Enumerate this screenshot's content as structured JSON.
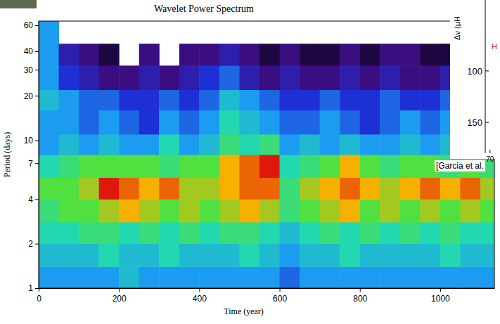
{
  "chart_data": {
    "type": "heatmap",
    "title": "Wavelet Power Spectrum",
    "x_label": "Time (year)",
    "y_label": "Period (days)",
    "log": "y",
    "xlim": [
      0,
      1135
    ],
    "ylim": [
      1,
      64
    ],
    "xticks": [
      0,
      200,
      400,
      600,
      800,
      1000
    ],
    "yticks": [
      1,
      2,
      4,
      7,
      10,
      20,
      30,
      40,
      60
    ],
    "x_bins": [
      0,
      50,
      100,
      150,
      200,
      250,
      300,
      350,
      400,
      450,
      500,
      550,
      600,
      650,
      700,
      750,
      800,
      850,
      900,
      950,
      1000,
      1050,
      1100,
      1150
    ],
    "y_bins": [
      1,
      1.4,
      2,
      2.8,
      4,
      5.6,
      8,
      11,
      16,
      22,
      32,
      45,
      64
    ],
    "color_bar": {
      "range": [
        0,
        7
      ],
      "colors": [
        "#000000",
        "#3a0d80",
        "#1f2fd6",
        "#1c9cf0",
        "#22d8b0",
        "#50e040",
        "#f5b000",
        "#e0180c"
      ]
    },
    "cells": [
      [
        3,
        3,
        3,
        3,
        3.5,
        3,
        3,
        3,
        3,
        3,
        3,
        3,
        2.5,
        3,
        3,
        3,
        3,
        3,
        3,
        3,
        3,
        3,
        3
      ],
      [
        3.5,
        3.5,
        3.5,
        4,
        3.5,
        3.5,
        4,
        3.5,
        3.5,
        3.5,
        4,
        3.5,
        3,
        3.5,
        3.5,
        4,
        3.5,
        3.5,
        3.5,
        3.5,
        4,
        3.5,
        3.5
      ],
      [
        4,
        4,
        4.5,
        4.5,
        4,
        4.5,
        4,
        4.5,
        4,
        4.5,
        4.5,
        4,
        3.5,
        4,
        4.5,
        4,
        4.5,
        4,
        4.5,
        4,
        4.5,
        4,
        4
      ],
      [
        4.5,
        5,
        5,
        5.5,
        6,
        5.5,
        5,
        5.5,
        5,
        5.5,
        6,
        5.5,
        4.5,
        5,
        5.5,
        6,
        5,
        5.5,
        5,
        5.5,
        5,
        5.5,
        5
      ],
      [
        5,
        5,
        5.5,
        7,
        6.5,
        6,
        6.5,
        5.5,
        5.5,
        6,
        6.5,
        6.5,
        4.5,
        5.5,
        6,
        6.5,
        6,
        5.5,
        6,
        6.5,
        6,
        6.5,
        5.5
      ],
      [
        4,
        4.5,
        5,
        5,
        5,
        5,
        4.5,
        5,
        5,
        6,
        6.5,
        7,
        4,
        4.5,
        5,
        6,
        5,
        4.5,
        5,
        5,
        4.5,
        5,
        4.5
      ],
      [
        3,
        3.5,
        3,
        3.5,
        3,
        3,
        4,
        3,
        3.5,
        4.5,
        4,
        4.5,
        3,
        3.5,
        3,
        3.5,
        3,
        3,
        3.5,
        3,
        3.5,
        3,
        3
      ],
      [
        3,
        3,
        2.5,
        3,
        2.5,
        2,
        3,
        2.5,
        3,
        4,
        3.5,
        3,
        2.5,
        2.5,
        3,
        2.5,
        2,
        2.5,
        3,
        2.5,
        3,
        2.5,
        2
      ],
      [
        3.5,
        3,
        2.5,
        2.5,
        2,
        2,
        2.5,
        2,
        2.5,
        3.5,
        3,
        2.5,
        2,
        2,
        2.5,
        2,
        2,
        2.5,
        2,
        2,
        2.5,
        2,
        2
      ],
      [
        3,
        2,
        1.5,
        1,
        1,
        1.5,
        1,
        1.5,
        2,
        2.5,
        1.5,
        1,
        1.5,
        1,
        1,
        1.5,
        1,
        1.5,
        1,
        1,
        1.5,
        1,
        1
      ],
      [
        3,
        1.5,
        1,
        0.5,
        null,
        1,
        null,
        1,
        1,
        1.5,
        1,
        0.5,
        1,
        0.5,
        0.5,
        1,
        0.5,
        1,
        1,
        0.5,
        0.5,
        1,
        0.5
      ],
      [
        3,
        null,
        null,
        null,
        null,
        null,
        null,
        null,
        null,
        null,
        null,
        null,
        null,
        null,
        null,
        null,
        null,
        null,
        null,
        null,
        null,
        null,
        null
      ]
    ],
    "annotations": [
      "[Garcia et al."
    ]
  },
  "inset": {
    "y_label": "Δν (μH",
    "ylim": [
      31,
      180
    ],
    "yticks": [
      100,
      150
    ],
    "xlim": [
      62,
      72
    ],
    "xticks": [
      70
    ],
    "label": "H"
  }
}
